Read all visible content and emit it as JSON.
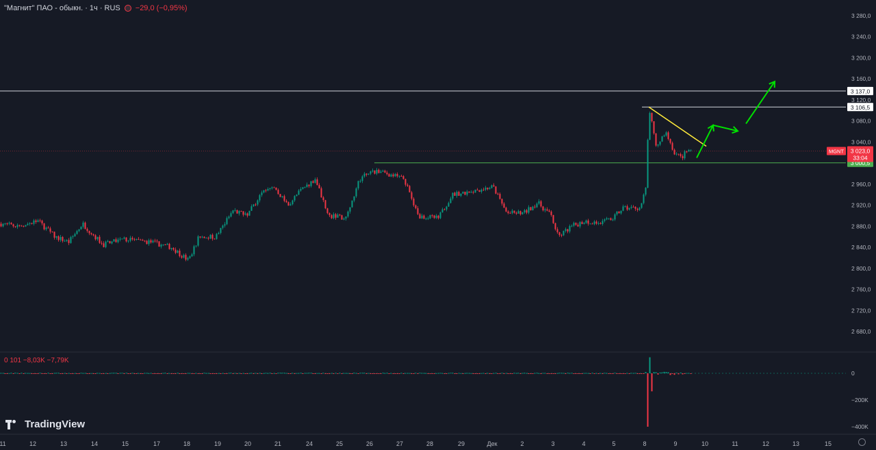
{
  "header": {
    "symbol": "\"Магнит\" ПАО - обыкн. · 1ч · RUS",
    "change": "−29,0 (−0,95%)"
  },
  "volume_legend": {
    "text": "0 101 −8,03K −7,79K"
  },
  "branding": {
    "logo_text": "TradingView"
  },
  "colors": {
    "up": "#089981",
    "down": "#f23645",
    "trend": "#ffeb3b",
    "forecast": "#00e000",
    "background": "#161a25"
  },
  "chart_data": {
    "type": "candlestick",
    "title": "\"Магнит\" ПАО - обыкн. · 1ч · RUS",
    "ylim": [
      2640,
      3300
    ],
    "y_ticks": [
      2680,
      2720,
      2760,
      2800,
      2840,
      2880,
      2920,
      2960,
      3000,
      3040,
      3080,
      3120,
      3160,
      3200,
      3240,
      3280
    ],
    "y_tick_labels": [
      "2 680,0",
      "2 720,0",
      "2 760,0",
      "2 800,0",
      "2 840,0",
      "2 880,0",
      "2 920,0",
      "2 960,0",
      "3 000,0",
      "3 040,0",
      "3 080,0",
      "3 120,0",
      "3 160,0",
      "3 200,0",
      "3 240,0",
      "3 280,0"
    ],
    "x_tick_labels": [
      "11",
      "12",
      "13",
      "14",
      "15",
      "17",
      "18",
      "19",
      "20",
      "21",
      "24",
      "25",
      "26",
      "27",
      "28",
      "29",
      "Дек",
      "2",
      "3",
      "4",
      "5",
      "8",
      "9",
      "10",
      "11",
      "12",
      "13",
      "15"
    ],
    "price_path": [
      [
        0,
        2885
      ],
      [
        25,
        2880
      ],
      [
        55,
        2890
      ],
      [
        80,
        2860
      ],
      [
        100,
        2850
      ],
      [
        120,
        2885
      ],
      [
        150,
        2845
      ],
      [
        180,
        2855
      ],
      [
        220,
        2850
      ],
      [
        250,
        2840
      ],
      [
        275,
        2815
      ],
      [
        290,
        2860
      ],
      [
        315,
        2860
      ],
      [
        340,
        2910
      ],
      [
        360,
        2900
      ],
      [
        380,
        2940
      ],
      [
        400,
        2955
      ],
      [
        420,
        2920
      ],
      [
        440,
        2950
      ],
      [
        460,
        2970
      ],
      [
        480,
        2900
      ],
      [
        505,
        2895
      ],
      [
        525,
        2970
      ],
      [
        545,
        2985
      ],
      [
        565,
        2980
      ],
      [
        590,
        2970
      ],
      [
        610,
        2900
      ],
      [
        640,
        2895
      ],
      [
        660,
        2940
      ],
      [
        680,
        2945
      ],
      [
        700,
        2950
      ],
      [
        720,
        2955
      ],
      [
        740,
        2905
      ],
      [
        765,
        2905
      ],
      [
        785,
        2925
      ],
      [
        805,
        2900
      ],
      [
        815,
        2860
      ],
      [
        835,
        2880
      ],
      [
        855,
        2890
      ],
      [
        875,
        2885
      ],
      [
        895,
        2895
      ],
      [
        910,
        2915
      ],
      [
        935,
        2915
      ],
      [
        943,
        2950
      ],
      [
        948,
        3105
      ],
      [
        958,
        3030
      ],
      [
        972,
        3060
      ],
      [
        985,
        3020
      ],
      [
        995,
        3010
      ],
      [
        1005,
        3025
      ],
      [
        1010,
        3023
      ]
    ],
    "levels": [
      {
        "value": 3137.0,
        "label": "3 137,0",
        "color": "#d1d4dc"
      },
      {
        "value": 3106.5,
        "label": "3 106,5",
        "color": "#d1d4dc"
      },
      {
        "value": 3000.5,
        "label": "3 000,5",
        "color": "#4caf50"
      }
    ],
    "last_price": {
      "symbol": "MGNT",
      "price": "3 023,0",
      "countdown": "33:04",
      "value": 3023
    },
    "trendline": {
      "from": [
        948,
        3106.5
      ],
      "to": [
        1032,
        3032
      ]
    },
    "forecast_path": [
      [
        1018,
        3010
      ],
      [
        1042,
        3072
      ],
      [
        1078,
        3061
      ]
    ],
    "forecast_breakout": [
      [
        1090,
        3075
      ],
      [
        1132,
        3155
      ]
    ],
    "volume": {
      "ylim": [
        -440,
        150
      ],
      "y_ticks": [
        0,
        -200,
        -400
      ],
      "y_tick_labels": [
        "0",
        "−200K",
        "−400K"
      ]
    }
  }
}
